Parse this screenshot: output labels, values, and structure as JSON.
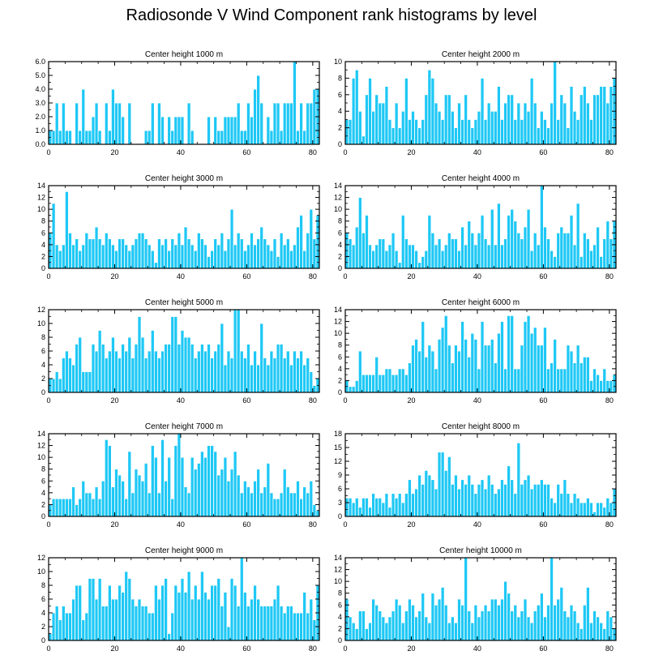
{
  "title": "Radiosonde V Wind Component rank histograms by level",
  "colors": {
    "bar": "#1EC8F5",
    "bar_edge": "#ffffff",
    "frame": "#000000"
  },
  "chart_data": [
    {
      "type": "bar",
      "title": "Center height 1000 m",
      "xlim": [
        0,
        82
      ],
      "ylim": [
        0,
        6.0
      ],
      "xticks": [
        0,
        20,
        40,
        60,
        80
      ],
      "yticks": [
        0.0,
        1.0,
        2.0,
        3.0,
        4.0,
        5.0,
        6.0
      ],
      "ytick_labels": [
        "0.0",
        "1.0",
        "2.0",
        "3.0",
        "4.0",
        "5.0",
        "6.0"
      ],
      "values": [
        1,
        1,
        3,
        1,
        3,
        1,
        1,
        0,
        3,
        1,
        4,
        1,
        1,
        2,
        3,
        1,
        0,
        3,
        1,
        4,
        3,
        3,
        2,
        0,
        3,
        0,
        0,
        0,
        0,
        1,
        1,
        3,
        0,
        3,
        2,
        0,
        2,
        1,
        2,
        2,
        2,
        0,
        3,
        1,
        0,
        0,
        0,
        0,
        2,
        0,
        2,
        1,
        1,
        2,
        2,
        2,
        2,
        3,
        1,
        1,
        3,
        2,
        4,
        5,
        3,
        0,
        2,
        1,
        3,
        3,
        1,
        3,
        3,
        3,
        6,
        1,
        3,
        1,
        3,
        3,
        4,
        4
      ]
    },
    {
      "type": "bar",
      "title": "Center height 2000 m",
      "xlim": [
        0,
        82
      ],
      "ylim": [
        0,
        10
      ],
      "xticks": [
        0,
        20,
        40,
        60,
        80
      ],
      "yticks": [
        0,
        2,
        4,
        6,
        8,
        10
      ],
      "ytick_labels": [
        "0",
        "2",
        "4",
        "6",
        "8",
        "10"
      ],
      "values": [
        3,
        3,
        8,
        9,
        4,
        1,
        6,
        8,
        4,
        6,
        5,
        5,
        7,
        3,
        2,
        5,
        2,
        4,
        8,
        3,
        4,
        3,
        2,
        3,
        6,
        9,
        8,
        5,
        4,
        3,
        6,
        6,
        4,
        2,
        5,
        3,
        6,
        3,
        2,
        3,
        4,
        8,
        3,
        5,
        4,
        4,
        7,
        3,
        5,
        6,
        6,
        3,
        5,
        3,
        5,
        4,
        8,
        5,
        2,
        4,
        3,
        2,
        5,
        10,
        3,
        6,
        5,
        2,
        7,
        4,
        3,
        6,
        7,
        5,
        3,
        6,
        6,
        7,
        7,
        5,
        7,
        8
      ]
    },
    {
      "type": "bar",
      "title": "Center height 3000 m",
      "xlim": [
        0,
        82
      ],
      "ylim": [
        0,
        14
      ],
      "xticks": [
        0,
        20,
        40,
        60,
        80
      ],
      "yticks": [
        0,
        2,
        4,
        6,
        8,
        10,
        12,
        14
      ],
      "ytick_labels": [
        "0",
        "2",
        "4",
        "6",
        "8",
        "10",
        "12",
        "14"
      ],
      "values": [
        6,
        11,
        4,
        3,
        4,
        13,
        6,
        4,
        5,
        3,
        4,
        6,
        5,
        5,
        7,
        5,
        4,
        6,
        5,
        4,
        3,
        5,
        5,
        4,
        3,
        4,
        5,
        6,
        6,
        5,
        4,
        3,
        1,
        5,
        4,
        5,
        3,
        5,
        4,
        6,
        4,
        7,
        5,
        4,
        3,
        6,
        5,
        4,
        2,
        3,
        5,
        4,
        6,
        3,
        5,
        10,
        4,
        6,
        5,
        3,
        4,
        6,
        4,
        5,
        7,
        5,
        4,
        3,
        5,
        2,
        6,
        4,
        5,
        3,
        4,
        7,
        9,
        3,
        6,
        10,
        5,
        9
      ]
    },
    {
      "type": "bar",
      "title": "Center height 4000 m",
      "xlim": [
        0,
        82
      ],
      "ylim": [
        0,
        14
      ],
      "xticks": [
        0,
        20,
        40,
        60,
        80
      ],
      "yticks": [
        0,
        2,
        4,
        6,
        8,
        10,
        12,
        14
      ],
      "ytick_labels": [
        "0",
        "2",
        "4",
        "6",
        "8",
        "10",
        "12",
        "14"
      ],
      "values": [
        6,
        5,
        4,
        7,
        12,
        6,
        9,
        4,
        3,
        4,
        5,
        5,
        3,
        4,
        6,
        3,
        1,
        9,
        5,
        4,
        4,
        3,
        1,
        2,
        3,
        9,
        6,
        4,
        5,
        3,
        4,
        6,
        5,
        5,
        3,
        7,
        4,
        8,
        6,
        4,
        6,
        9,
        5,
        4,
        10,
        4,
        11,
        4,
        5,
        9,
        10,
        8,
        6,
        5,
        7,
        10,
        3,
        6,
        4,
        14,
        7,
        5,
        3,
        2,
        6,
        7,
        6,
        6,
        9,
        4,
        11,
        2,
        6,
        5,
        3,
        4,
        7,
        2,
        5,
        8,
        5,
        8
      ]
    },
    {
      "type": "bar",
      "title": "Center height 5000 m",
      "xlim": [
        0,
        82
      ],
      "ylim": [
        0,
        12
      ],
      "xticks": [
        0,
        20,
        40,
        60,
        80
      ],
      "yticks": [
        0,
        2,
        4,
        6,
        8,
        10,
        12
      ],
      "ytick_labels": [
        "0",
        "2",
        "4",
        "6",
        "8",
        "10",
        "12"
      ],
      "values": [
        2,
        2,
        3,
        2,
        5,
        6,
        5,
        4,
        7,
        8,
        3,
        3,
        3,
        7,
        6,
        9,
        7,
        5,
        6,
        8,
        6,
        5,
        7,
        6,
        8,
        5,
        7,
        11,
        8,
        5,
        6,
        9,
        6,
        5,
        6,
        7,
        7,
        11,
        11,
        7,
        9,
        8,
        8,
        7,
        5,
        6,
        7,
        6,
        7,
        5,
        6,
        7,
        10,
        4,
        6,
        5,
        12,
        12,
        6,
        5,
        7,
        4,
        6,
        4,
        10,
        5,
        4,
        6,
        5,
        7,
        7,
        5,
        6,
        4,
        6,
        5,
        6,
        4,
        5,
        3,
        1,
        2
      ]
    },
    {
      "type": "bar",
      "title": "Center height 6000 m",
      "xlim": [
        0,
        82
      ],
      "ylim": [
        0,
        14
      ],
      "xticks": [
        0,
        20,
        40,
        60,
        80
      ],
      "yticks": [
        0,
        2,
        4,
        6,
        8,
        10,
        12,
        14
      ],
      "ytick_labels": [
        "0",
        "2",
        "4",
        "6",
        "8",
        "10",
        "12",
        "14"
      ],
      "values": [
        2,
        1,
        1,
        2,
        7,
        3,
        3,
        3,
        3,
        6,
        3,
        3,
        4,
        4,
        3,
        3,
        4,
        4,
        3,
        5,
        8,
        9,
        7,
        12,
        6,
        8,
        7,
        4,
        9,
        11,
        13,
        8,
        5,
        8,
        7,
        12,
        9,
        6,
        10,
        9,
        4,
        12,
        8,
        8,
        9,
        5,
        10,
        12,
        4,
        13,
        13,
        4,
        4,
        8,
        12,
        13,
        10,
        11,
        8,
        8,
        11,
        4,
        5,
        9,
        4,
        4,
        4,
        8,
        7,
        5,
        8,
        5,
        6,
        6,
        2,
        4,
        3,
        2,
        4,
        2,
        2,
        3
      ]
    },
    {
      "type": "bar",
      "title": "Center height 7000 m",
      "xlim": [
        0,
        82
      ],
      "ylim": [
        0,
        14
      ],
      "xticks": [
        0,
        20,
        40,
        60,
        80
      ],
      "yticks": [
        0,
        2,
        4,
        6,
        8,
        10,
        12,
        14
      ],
      "ytick_labels": [
        "0",
        "2",
        "4",
        "6",
        "8",
        "10",
        "12",
        "14"
      ],
      "values": [
        2,
        3,
        3,
        3,
        3,
        3,
        3,
        5,
        2,
        3,
        6,
        4,
        4,
        3,
        5,
        3,
        6,
        13,
        12,
        5,
        8,
        7,
        6,
        3,
        11,
        4,
        8,
        7,
        6,
        9,
        4,
        12,
        10,
        4,
        13,
        6,
        10,
        3,
        12,
        14,
        10,
        5,
        4,
        10,
        8,
        9,
        11,
        10,
        12,
        12,
        11,
        7,
        8,
        10,
        6,
        8,
        11,
        7,
        4,
        6,
        5,
        4,
        6,
        8,
        4,
        5,
        9,
        4,
        3,
        3,
        4,
        8,
        5,
        4,
        4,
        6,
        3,
        5,
        4,
        6,
        2,
        1
      ]
    },
    {
      "type": "bar",
      "title": "Center height 8000 m",
      "xlim": [
        0,
        82
      ],
      "ylim": [
        0,
        18
      ],
      "xticks": [
        0,
        20,
        40,
        60,
        80
      ],
      "yticks": [
        0,
        3,
        6,
        9,
        12,
        15,
        18
      ],
      "ytick_labels": [
        "0",
        "3",
        "6",
        "9",
        "12",
        "15",
        "18"
      ],
      "values": [
        4,
        4,
        3,
        4,
        2,
        4,
        4,
        2,
        5,
        4,
        4,
        3,
        5,
        2,
        5,
        4,
        5,
        3,
        5,
        8,
        5,
        6,
        9,
        7,
        10,
        9,
        8,
        6,
        14,
        14,
        10,
        13,
        7,
        9,
        6,
        8,
        7,
        9,
        7,
        5,
        7,
        8,
        6,
        9,
        7,
        5,
        6,
        8,
        7,
        11,
        8,
        5,
        16,
        7,
        8,
        9,
        6,
        7,
        7,
        8,
        7,
        7,
        4,
        3,
        7,
        5,
        8,
        5,
        3,
        5,
        4,
        3,
        3,
        4,
        3,
        1,
        3,
        3,
        2,
        4,
        3,
        6
      ]
    },
    {
      "type": "bar",
      "title": "Center height 9000 m",
      "xlim": [
        0,
        82
      ],
      "ylim": [
        0,
        12
      ],
      "xticks": [
        0,
        20,
        40,
        60,
        80
      ],
      "yticks": [
        0,
        2,
        4,
        6,
        8,
        10,
        12
      ],
      "ytick_labels": [
        "0",
        "2",
        "4",
        "6",
        "8",
        "10",
        "12"
      ],
      "values": [
        1,
        4,
        5,
        3,
        5,
        4,
        4,
        6,
        8,
        8,
        3,
        4,
        9,
        9,
        6,
        9,
        5,
        5,
        8,
        6,
        6,
        8,
        7,
        10,
        9,
        6,
        5,
        6,
        5,
        5,
        4,
        4,
        8,
        6,
        8,
        9,
        1,
        4,
        8,
        7,
        9,
        7,
        10,
        6,
        8,
        6,
        10,
        7,
        6,
        8,
        8,
        9,
        5,
        7,
        2,
        9,
        8,
        5,
        12,
        7,
        5,
        6,
        8,
        6,
        5,
        5,
        5,
        5,
        6,
        8,
        5,
        4,
        5,
        5,
        4,
        4,
        4,
        7,
        4,
        6,
        3,
        8
      ]
    },
    {
      "type": "bar",
      "title": "Center height 10000 m",
      "xlim": [
        0,
        82
      ],
      "ylim": [
        0,
        14
      ],
      "xticks": [
        0,
        20,
        40,
        60,
        80
      ],
      "yticks": [
        0,
        2,
        4,
        6,
        8,
        10,
        12,
        14
      ],
      "ytick_labels": [
        "0",
        "2",
        "4",
        "6",
        "8",
        "10",
        "12",
        "14"
      ],
      "values": [
        7,
        4,
        3,
        2,
        5,
        5,
        2,
        3,
        7,
        6,
        5,
        4,
        3,
        4,
        5,
        7,
        6,
        3,
        5,
        7,
        6,
        4,
        5,
        8,
        4,
        3,
        8,
        6,
        7,
        9,
        6,
        3,
        4,
        3,
        7,
        6,
        14,
        5,
        3,
        6,
        4,
        5,
        6,
        5,
        7,
        7,
        6,
        7,
        10,
        8,
        5,
        6,
        4,
        5,
        7,
        4,
        3,
        5,
        6,
        8,
        4,
        6,
        14,
        6,
        7,
        9,
        5,
        4,
        6,
        5,
        3,
        2,
        6,
        9,
        3,
        5,
        4,
        3,
        2,
        5,
        4,
        2
      ]
    }
  ]
}
